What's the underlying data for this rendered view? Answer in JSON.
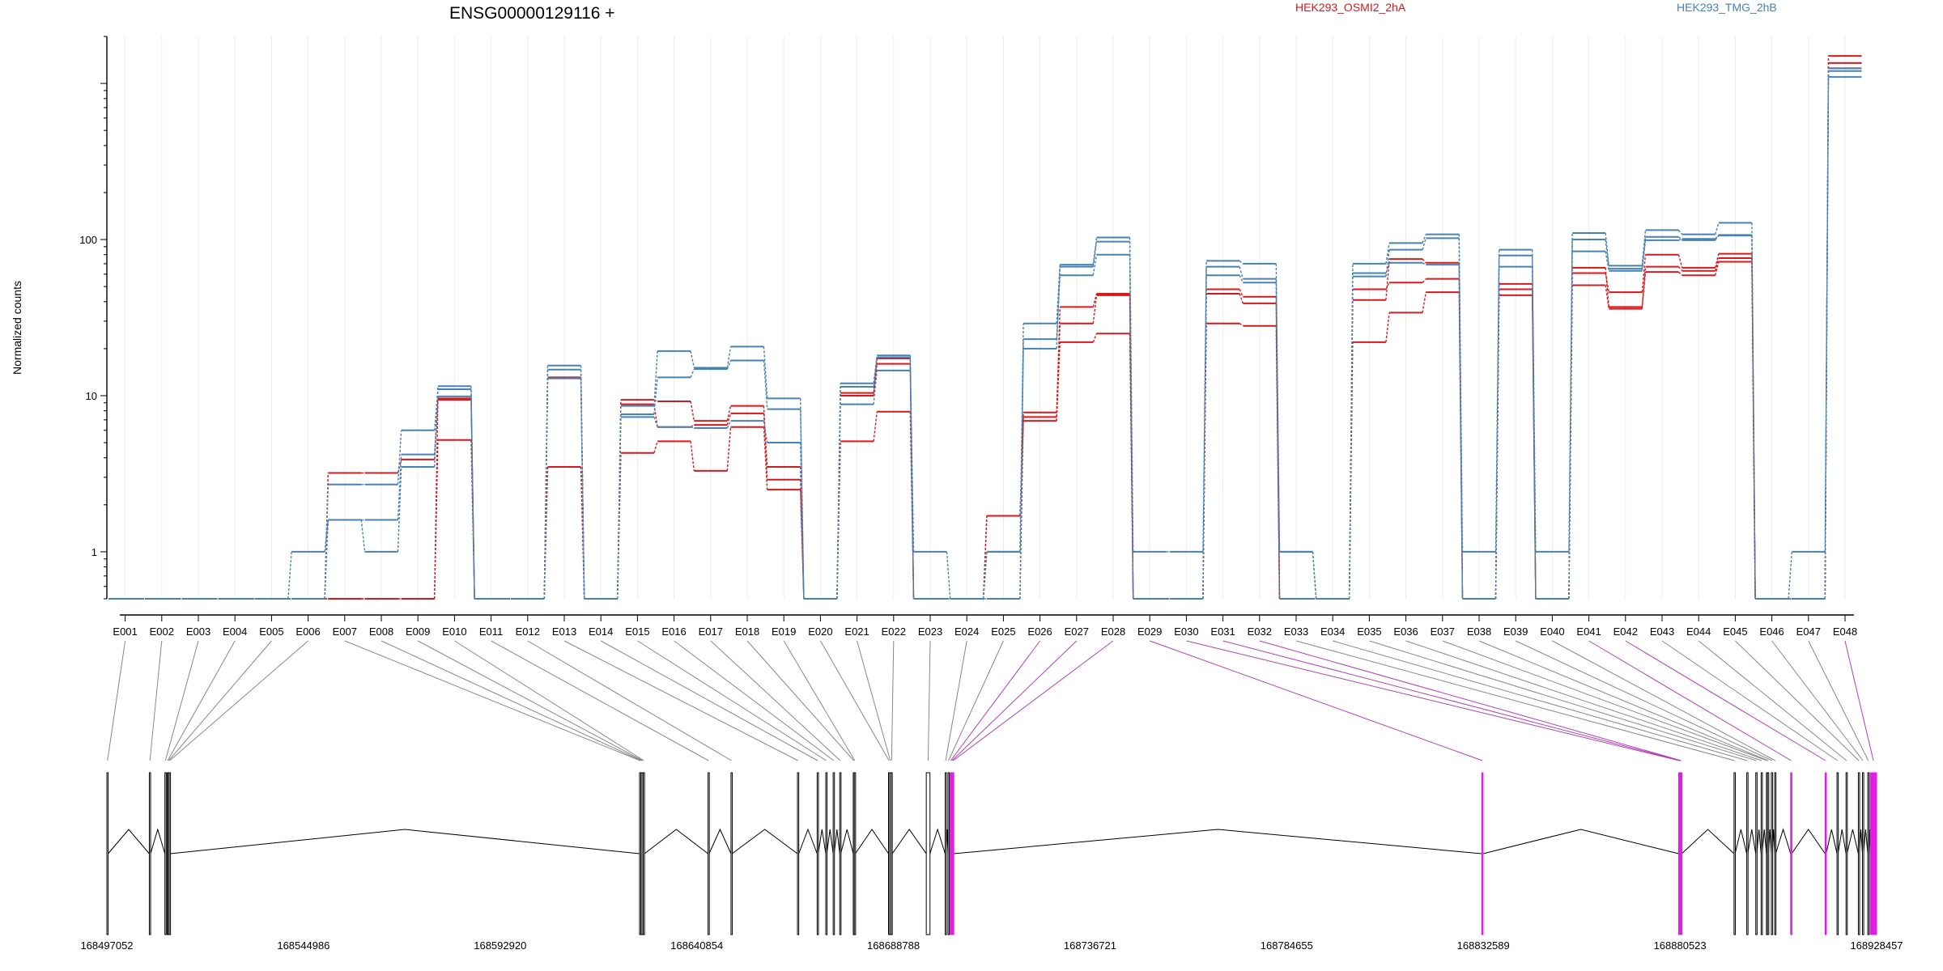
{
  "chart_data": {
    "type": "line",
    "title": "ENSG00000129116 +",
    "ylabel": "Normalized counts",
    "yscale": "log",
    "ylim": [
      0.5,
      2000
    ],
    "y_ticks": [
      1,
      10,
      100
    ],
    "y_tick_labels": [
      "1",
      "10",
      "100"
    ],
    "grid": "vertical",
    "legend_placement": "top",
    "colors": {
      "condition_a": "#d7191c",
      "condition_b": "#4682b4",
      "mixed": "#4a5c8a",
      "highlight": "#e020e0",
      "grid": "#ececec",
      "link": "#888888"
    },
    "legend": [
      {
        "label": "HEK293_OSMI2_2hA",
        "color": "#d7191c"
      },
      {
        "label": "HEK293_TMG_2hB",
        "color": "#4682b4"
      }
    ],
    "categories": [
      "E001",
      "E002",
      "E003",
      "E004",
      "E005",
      "E006",
      "E007",
      "E008",
      "E009",
      "E010",
      "E011",
      "E012",
      "E013",
      "E014",
      "E015",
      "E016",
      "E017",
      "E018",
      "E019",
      "E020",
      "E021",
      "E022",
      "E023",
      "E024",
      "E025",
      "E026",
      "E027",
      "E028",
      "E029",
      "E030",
      "E031",
      "E032",
      "E033",
      "E034",
      "E035",
      "E036",
      "E037",
      "E038",
      "E039",
      "E040",
      "E041",
      "E042",
      "E043",
      "E044",
      "E045",
      "E046",
      "E047",
      "E048"
    ],
    "series": [
      {
        "group": "condition_a",
        "values": [
          0.5,
          0.5,
          0.5,
          0.5,
          0.5,
          0.5,
          0.5,
          0.5,
          0.5,
          5.2,
          0.5,
          0.5,
          3.5,
          0.5,
          4.3,
          5.1,
          3.3,
          6.3,
          2.5,
          0.5,
          5.1,
          7.9,
          0.5,
          0.5,
          1.7,
          6.9,
          22,
          25,
          0.5,
          0.5,
          29,
          28,
          0.5,
          0.5,
          22,
          34,
          46,
          0.5,
          44,
          0.5,
          51,
          36,
          62,
          59,
          72,
          0.5,
          0.5,
          1250
        ]
      },
      {
        "group": "condition_a",
        "values": [
          0.5,
          0.5,
          0.5,
          0.5,
          0.5,
          0.5,
          3.2,
          3.2,
          3.9,
          9.4,
          0.5,
          0.5,
          13,
          0.5,
          9.4,
          9.2,
          6.9,
          8.6,
          2.9,
          0.5,
          10.4,
          17.3,
          0.5,
          0.5,
          1.7,
          7.3,
          37,
          45,
          0.5,
          0.5,
          48,
          43,
          0.5,
          0.5,
          48,
          53,
          56,
          0.5,
          52,
          0.5,
          61,
          46,
          80,
          66,
          81,
          0.5,
          0.5,
          1500
        ]
      },
      {
        "group": "condition_a",
        "values": [
          0.5,
          0.5,
          0.5,
          0.5,
          0.5,
          0.5,
          0.5,
          0.5,
          0.5,
          9.6,
          0.5,
          0.5,
          13.1,
          0.5,
          8.8,
          6.3,
          6.5,
          7.7,
          3.5,
          0.5,
          10,
          16,
          0.5,
          0.5,
          0.5,
          7.8,
          29,
          44,
          0.5,
          0.5,
          45,
          39,
          0.5,
          0.5,
          41,
          75,
          71,
          0.5,
          48,
          0.5,
          66,
          37,
          67,
          63,
          76,
          0.5,
          0.5,
          1350
        ]
      },
      {
        "group": "condition_b",
        "values": [
          0.5,
          0.5,
          0.5,
          0.5,
          0.5,
          1,
          1.6,
          1,
          3.5,
          11.5,
          0.5,
          0.5,
          15.6,
          0.5,
          8.6,
          19.3,
          15.1,
          20.6,
          9.6,
          0.5,
          12,
          18.1,
          1,
          0.5,
          1,
          29,
          69,
          103,
          1,
          1,
          73,
          70,
          1,
          0.5,
          70,
          95,
          108,
          1,
          86,
          1,
          110,
          68,
          115,
          108,
          128,
          0.5,
          1,
          1100
        ]
      },
      {
        "group": "condition_b",
        "values": [
          0.5,
          0.5,
          0.5,
          0.5,
          0.5,
          0.5,
          2.7,
          2.7,
          6,
          11,
          0.5,
          0.5,
          14.7,
          0.5,
          7.6,
          13.1,
          14.8,
          16.8,
          8.2,
          0.5,
          11.4,
          17.6,
          0.5,
          0.5,
          0.5,
          23,
          59,
          80,
          0.5,
          0.5,
          67,
          56,
          0.5,
          0.5,
          58,
          86,
          102,
          0.5,
          67,
          0.5,
          100,
          65,
          104,
          99,
          106,
          0.5,
          0.5,
          1200
        ]
      },
      {
        "group": "condition_b",
        "values": [
          0.5,
          0.5,
          0.5,
          0.5,
          0.5,
          0.5,
          1.6,
          1.6,
          4.2,
          9.9,
          0.5,
          0.5,
          12.9,
          0.5,
          7.3,
          6.3,
          6.2,
          6.9,
          5,
          0.5,
          8.8,
          14.5,
          0.5,
          0.5,
          1,
          20,
          67,
          97,
          0.5,
          0.5,
          59,
          53,
          1,
          0.5,
          61,
          71,
          69,
          0.5,
          79,
          0.5,
          84,
          63,
          99,
          101,
          107,
          0.5,
          0.5,
          1250
        ]
      }
    ],
    "gene_model": {
      "coordinate_labels": [
        "168497052",
        "168544986",
        "168592920",
        "168640854",
        "168688788",
        "168736721",
        "168784655",
        "168832589",
        "168880523",
        "168928457"
      ],
      "x_range": [
        168497052,
        168928457
      ],
      "exons": [
        {
          "id": "E001",
          "start": 168497052,
          "end": 168497352
        },
        {
          "id": "E002",
          "start": 168507400,
          "end": 168507700
        },
        {
          "id": "E003",
          "start": 168511200,
          "end": 168511450
        },
        {
          "id": "E004",
          "start": 168511750,
          "end": 168512000
        },
        {
          "id": "E005",
          "start": 168512000,
          "end": 168512250
        },
        {
          "id": "E006",
          "start": 168512250,
          "end": 168512500
        },
        {
          "id": "E007",
          "start": 168626900,
          "end": 168627200
        },
        {
          "id": "E008",
          "start": 168627200,
          "end": 168627500
        },
        {
          "id": "E009",
          "start": 168627500,
          "end": 168627800
        },
        {
          "id": "E010",
          "start": 168627800,
          "end": 168628100
        },
        {
          "id": "E011",
          "start": 168643600,
          "end": 168643850
        },
        {
          "id": "E012",
          "start": 168649200,
          "end": 168649450
        },
        {
          "id": "E013",
          "start": 168665400,
          "end": 168665700
        },
        {
          "id": "E014",
          "start": 168670200,
          "end": 168670450
        },
        {
          "id": "E015",
          "start": 168672300,
          "end": 168672550
        },
        {
          "id": "E016",
          "start": 168674100,
          "end": 168674350
        },
        {
          "id": "E017",
          "start": 168675700,
          "end": 168675950
        },
        {
          "id": "E018",
          "start": 168679000,
          "end": 168679250
        },
        {
          "id": "E019",
          "start": 168679250,
          "end": 168679500
        },
        {
          "id": "E020",
          "start": 168687600,
          "end": 168687850
        },
        {
          "id": "E021",
          "start": 168687850,
          "end": 168688200
        },
        {
          "id": "E022",
          "start": 168688200,
          "end": 168688500
        },
        {
          "id": "E023",
          "start": 168696800,
          "end": 168697700
        },
        {
          "id": "E024",
          "start": 168701400,
          "end": 168701650
        },
        {
          "id": "E025",
          "start": 168702100,
          "end": 168702350
        },
        {
          "id": "E026",
          "start": 168702600,
          "end": 168702900
        },
        {
          "id": "E027",
          "start": 168702900,
          "end": 168703200
        },
        {
          "id": "E028",
          "start": 168703200,
          "end": 168703500
        },
        {
          "id": "E029",
          "start": 168832200,
          "end": 168832500
        },
        {
          "id": "E030",
          "start": 168880200,
          "end": 168880450
        },
        {
          "id": "E031",
          "start": 168880450,
          "end": 168880700
        },
        {
          "id": "E032",
          "start": 168880700,
          "end": 168880950
        },
        {
          "id": "E033",
          "start": 168893700,
          "end": 168893950
        },
        {
          "id": "E034",
          "start": 168896800,
          "end": 168897050
        },
        {
          "id": "E035",
          "start": 168899000,
          "end": 168899250
        },
        {
          "id": "E036",
          "start": 168900300,
          "end": 168900550
        },
        {
          "id": "E037",
          "start": 168901600,
          "end": 168901850
        },
        {
          "id": "E038",
          "start": 168901850,
          "end": 168902100
        },
        {
          "id": "E039",
          "start": 168902800,
          "end": 168903050
        },
        {
          "id": "E040",
          "start": 168903600,
          "end": 168903850
        },
        {
          "id": "E041",
          "start": 168907500,
          "end": 168907750
        },
        {
          "id": "E042",
          "start": 168915900,
          "end": 168916150
        },
        {
          "id": "E043",
          "start": 168918800,
          "end": 168919050
        },
        {
          "id": "E044",
          "start": 168921000,
          "end": 168921250
        },
        {
          "id": "E045",
          "start": 168924000,
          "end": 168924250
        },
        {
          "id": "E046",
          "start": 168925000,
          "end": 168925250
        },
        {
          "id": "E047",
          "start": 168926300,
          "end": 168926550
        },
        {
          "id": "E048",
          "start": 168926900,
          "end": 168928457
        }
      ],
      "highlighted_exons": [
        "E026",
        "E027",
        "E028",
        "E029",
        "E030",
        "E031",
        "E032",
        "E041",
        "E042",
        "E048"
      ],
      "introns": [
        [
          168497352,
          168507400
        ],
        [
          168507700,
          168511200
        ],
        [
          168512500,
          168626900
        ],
        [
          168628100,
          168643600
        ],
        [
          168643850,
          168649200
        ],
        [
          168649450,
          168665400
        ],
        [
          168665700,
          168670200
        ],
        [
          168670450,
          168672300
        ],
        [
          168672550,
          168674100
        ],
        [
          168674350,
          168675700
        ],
        [
          168675950,
          168679000
        ],
        [
          168679500,
          168687600
        ],
        [
          168688500,
          168696800
        ],
        [
          168697700,
          168701400
        ],
        [
          168701650,
          168702100
        ],
        [
          168703500,
          168832200
        ],
        [
          168832500,
          168880200
        ],
        [
          168880950,
          168893700
        ],
        [
          168893950,
          168896800
        ],
        [
          168897050,
          168899000
        ],
        [
          168899250,
          168900300
        ],
        [
          168900550,
          168901600
        ],
        [
          168902100,
          168902800
        ],
        [
          168903050,
          168903600
        ],
        [
          168903850,
          168907500
        ],
        [
          168907750,
          168915900
        ],
        [
          168916150,
          168918800
        ],
        [
          168919050,
          168921000
        ],
        [
          168921250,
          168924000
        ],
        [
          168924250,
          168925000
        ],
        [
          168925250,
          168926300
        ],
        [
          168926550,
          168926900
        ]
      ]
    }
  }
}
